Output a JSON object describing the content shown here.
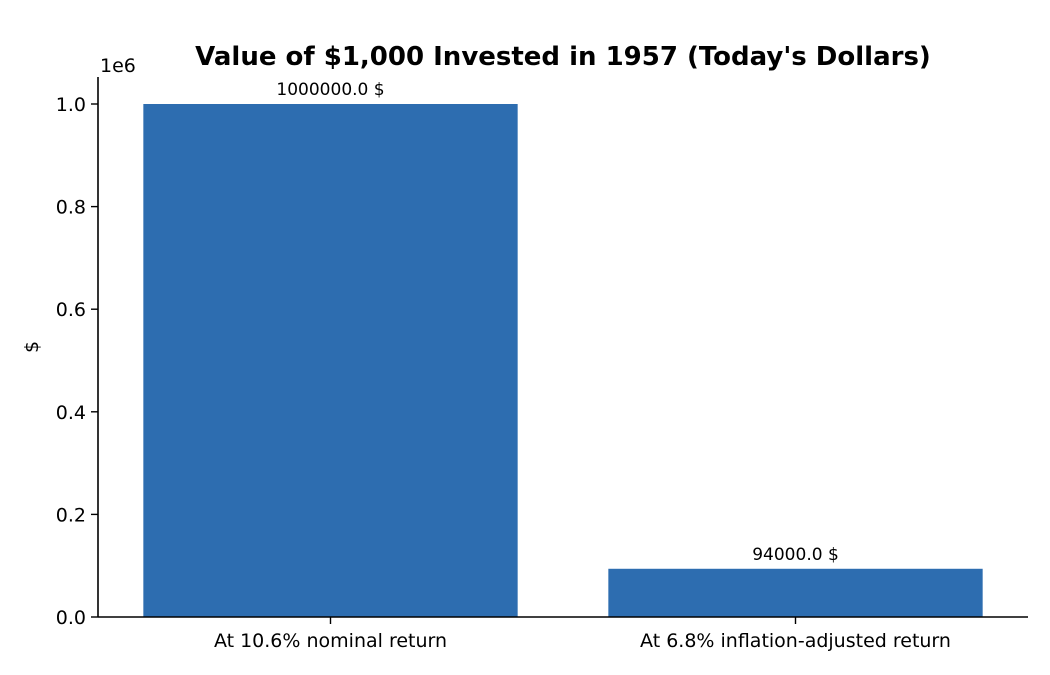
{
  "chart_data": {
    "type": "bar",
    "title": "Value of $1,000 Invested in 1957 (Today's Dollars)",
    "ylabel": "$",
    "xlabel": "",
    "y_multiplier_label": "1e6",
    "y_scale_factor": 1000000,
    "ylim": [
      0,
      1050000
    ],
    "yticks": [
      0,
      200000,
      400000,
      600000,
      800000,
      1000000
    ],
    "ytick_labels": [
      "0.0",
      "0.2",
      "0.4",
      "0.6",
      "0.8",
      "1.0"
    ],
    "categories": [
      "At 10.6% nominal return",
      "At 6.8% inflation-adjusted return"
    ],
    "values": [
      1000000,
      94000
    ],
    "bar_labels": [
      "1000000.0 $",
      "94000.0 $"
    ],
    "bar_color": "#2d6db0",
    "grid": false,
    "legend": "none"
  }
}
